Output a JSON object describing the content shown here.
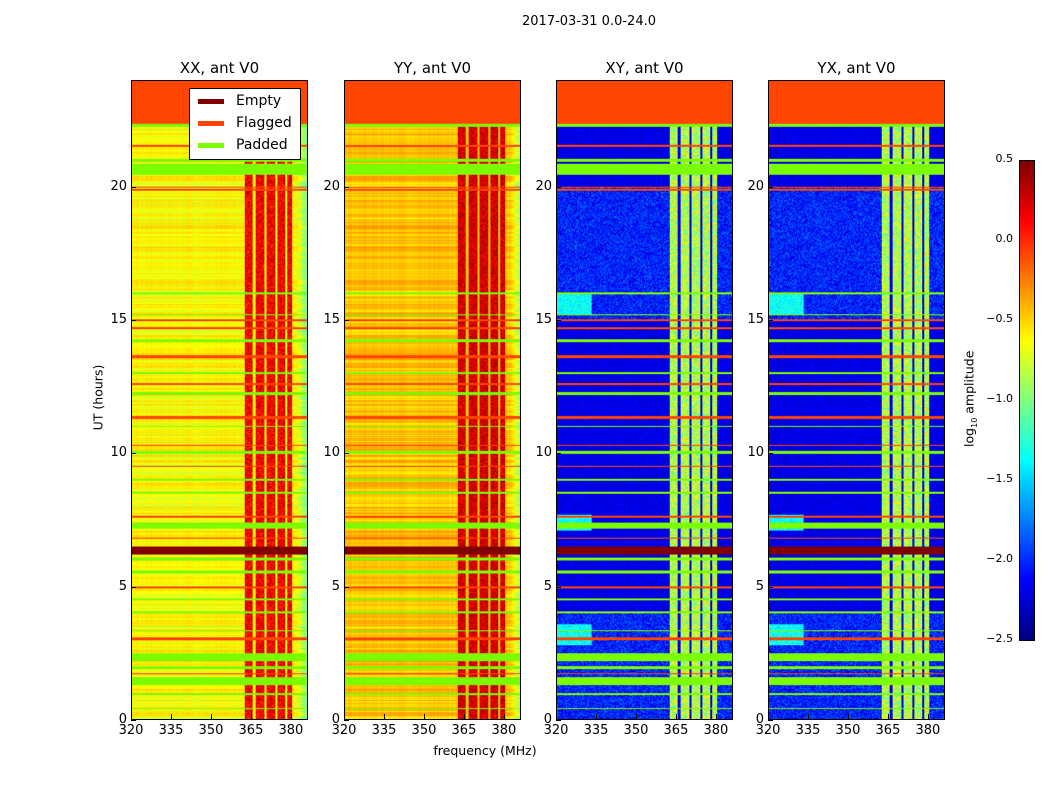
{
  "chart_data": {
    "type": "heatmap",
    "title": "2017-03-31 0.0-24.0",
    "xlabel": "frequency (MHz)",
    "ylabel": "UT (hours)",
    "xlim": [
      320,
      386.4
    ],
    "ylim": [
      0,
      24
    ],
    "xticks": [
      "320",
      "335",
      "350",
      "365",
      "380"
    ],
    "xtick_values": [
      320,
      335,
      350,
      365,
      380
    ],
    "yticks": [
      "0",
      "5",
      "10",
      "15",
      "20"
    ],
    "ytick_values": [
      0,
      5,
      10,
      15,
      20
    ],
    "panels": [
      {
        "title": "XX, ant V0",
        "base_log_amp": -0.62,
        "rfi_log_amp": 0.15,
        "kind": "auto"
      },
      {
        "title": "YY, ant V0",
        "base_log_amp": -0.45,
        "rfi_log_amp": 0.25,
        "kind": "auto"
      },
      {
        "title": "XY, ant V0",
        "base_log_amp": -2.3,
        "rfi_log_amp": -1.0,
        "kind": "cross"
      },
      {
        "title": "YX, ant V0",
        "base_log_amp": -2.3,
        "rfi_log_amp": -1.0,
        "kind": "cross"
      }
    ],
    "rfi_band_mhz": [
      362.5,
      380.5
    ],
    "empty_hours": [
      [
        6.2,
        6.5
      ]
    ],
    "flagged_hours": [
      [
        22.4,
        24.0
      ],
      [
        21.55,
        21.6
      ],
      [
        20.0,
        20.05
      ],
      [
        19.9,
        19.95
      ],
      [
        15.0,
        15.05
      ],
      [
        14.7,
        14.75
      ],
      [
        13.6,
        13.7
      ],
      [
        12.6,
        12.65
      ],
      [
        11.3,
        11.4
      ],
      [
        10.3,
        10.35
      ],
      [
        9.5,
        9.55
      ],
      [
        7.6,
        7.65
      ],
      [
        6.8,
        6.85
      ],
      [
        4.95,
        5.0
      ],
      [
        3.0,
        3.1
      ],
      [
        1.7,
        1.75
      ]
    ],
    "padded_hours": [
      [
        22.3,
        22.4
      ],
      [
        21.0,
        21.1
      ],
      [
        20.5,
        20.9
      ],
      [
        16.0,
        16.05
      ],
      [
        15.2,
        15.25
      ],
      [
        14.2,
        14.3
      ],
      [
        13.0,
        13.05
      ],
      [
        12.2,
        12.3
      ],
      [
        11.0,
        11.05
      ],
      [
        10.0,
        10.1
      ],
      [
        9.0,
        9.05
      ],
      [
        8.5,
        8.55
      ],
      [
        7.2,
        7.4
      ],
      [
        6.0,
        6.1
      ],
      [
        5.5,
        5.6
      ],
      [
        4.5,
        4.55
      ],
      [
        4.0,
        4.05
      ],
      [
        3.3,
        3.35
      ],
      [
        2.2,
        2.5
      ],
      [
        1.9,
        2.0
      ],
      [
        1.3,
        1.6
      ],
      [
        0.9,
        1.0
      ],
      [
        0.4,
        0.45
      ]
    ],
    "colorbar": {
      "label_prefix": "log",
      "label_sub": "10",
      "label_suffix": " amplitude",
      "range": [
        -2.5,
        0.5
      ],
      "colormap": "jet",
      "ticks": [
        "0.5",
        "0.0",
        "−0.5",
        "−1.0",
        "−1.5",
        "−2.0",
        "−2.5"
      ],
      "tick_values": [
        0.5,
        0.0,
        -0.5,
        -1.0,
        -1.5,
        -2.0,
        -2.5
      ]
    },
    "legend": {
      "placement": "upper-right of first panel",
      "entries": [
        {
          "label": "Empty",
          "color": "#800000"
        },
        {
          "label": "Flagged",
          "color": "#ff4500"
        },
        {
          "label": "Padded",
          "color": "#7cfc00"
        }
      ]
    }
  }
}
